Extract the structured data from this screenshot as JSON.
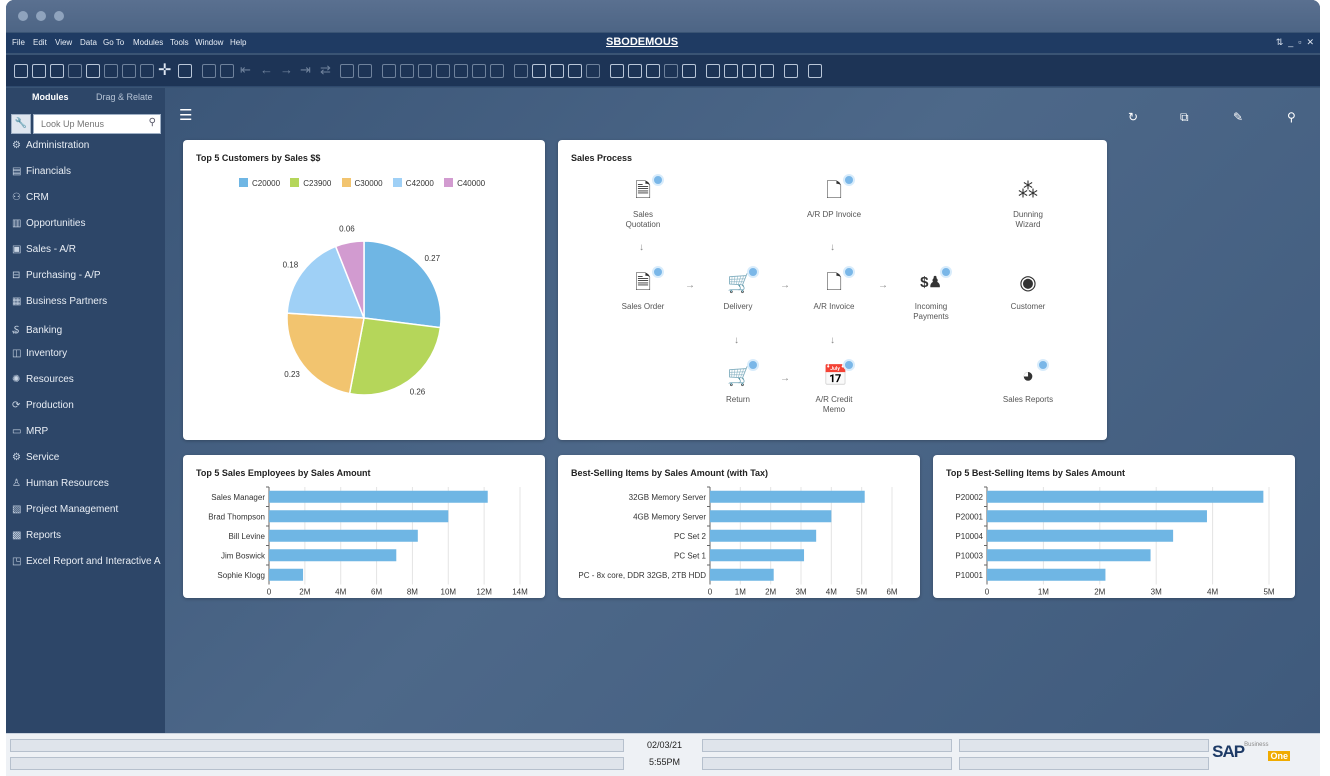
{
  "window": {
    "title": "SBODEMOUS"
  },
  "menu": [
    "File",
    "Edit",
    "View",
    "Data",
    "Go To",
    "Modules",
    "Tools",
    "Window",
    "Help"
  ],
  "sidebar": {
    "tabs": [
      "Modules",
      "Drag & Relate"
    ],
    "search_placeholder": "Look Up Menus",
    "items": [
      {
        "label": "Administration",
        "icon": "gear-icon"
      },
      {
        "label": "Financials",
        "icon": "ledger-icon"
      },
      {
        "label": "CRM",
        "icon": "people-icon"
      },
      {
        "label": "Opportunities",
        "icon": "chart-icon"
      },
      {
        "label": "Sales - A/R",
        "icon": "invoice-icon"
      },
      {
        "label": "Purchasing - A/P",
        "icon": "cart-icon"
      },
      {
        "label": "Business Partners",
        "icon": "partners-icon"
      },
      {
        "label": "Banking",
        "icon": "bank-icon"
      },
      {
        "label": "Inventory",
        "icon": "box-icon"
      },
      {
        "label": "Resources",
        "icon": "resources-icon"
      },
      {
        "label": "Production",
        "icon": "production-icon"
      },
      {
        "label": "MRP",
        "icon": "mrp-icon"
      },
      {
        "label": "Service",
        "icon": "service-icon"
      },
      {
        "label": "Human Resources",
        "icon": "person-icon"
      },
      {
        "label": "Project Management",
        "icon": "project-icon"
      },
      {
        "label": "Reports",
        "icon": "report-icon"
      },
      {
        "label": "Excel Report and Interactive A",
        "icon": "excel-icon"
      }
    ]
  },
  "colors": {
    "accent": "#6fb6e4",
    "pie": [
      "#6fb6e4",
      "#b5d65a",
      "#f2c46f",
      "#9fd0f6",
      "#d29bd0"
    ]
  },
  "cards": {
    "customers": {
      "title": "Top 5 Customers by Sales $$"
    },
    "process": {
      "title": "Sales Process",
      "nodes": {
        "sales_quotation": "Sales\nQuotation",
        "ar_dp_invoice": "A/R DP Invoice",
        "dunning_wizard": "Dunning\nWizard",
        "sales_order": "Sales Order",
        "delivery": "Delivery",
        "ar_invoice": "A/R Invoice",
        "incoming_payments": "Incoming\nPayments",
        "customer": "Customer",
        "return": "Return",
        "ar_credit_memo": "A/R Credit\nMemo",
        "sales_reports": "Sales Reports"
      }
    },
    "employees": {
      "title": "Top 5 Sales Employees by Sales Amount"
    },
    "items_tax": {
      "title": "Best-Selling Items by Sales Amount (with Tax)"
    },
    "items": {
      "title": "Top 5 Best-Selling Items by Sales Amount"
    }
  },
  "chart_data": [
    {
      "type": "pie",
      "title": "Top 5 Customers by Sales $$",
      "categories": [
        "C20000",
        "C23900",
        "C30000",
        "C42000",
        "C40000"
      ],
      "values": [
        0.27,
        0.26,
        0.23,
        0.18,
        0.06
      ],
      "legend": "top"
    },
    {
      "type": "bar",
      "orientation": "horizontal",
      "title": "Top 5 Sales Employees by Sales Amount",
      "categories": [
        "Sales Manager",
        "Brad Thompson",
        "Bill Levine",
        "Jim Boswick",
        "Sophie Klogg"
      ],
      "values": [
        12.2,
        10.0,
        8.3,
        7.1,
        1.9
      ],
      "ticks": [
        "0",
        "2M",
        "4M",
        "6M",
        "8M",
        "10M",
        "12M",
        "14M"
      ],
      "xlim": [
        0,
        14
      ]
    },
    {
      "type": "bar",
      "orientation": "horizontal",
      "title": "Best-Selling Items by Sales Amount (with Tax)",
      "categories": [
        "32GB Memory Server",
        "4GB Memory Server",
        "PC Set 2",
        "PC Set 1",
        "PC - 8x core, DDR 32GB, 2TB HDD"
      ],
      "values": [
        5.1,
        4.0,
        3.5,
        3.1,
        2.1
      ],
      "ticks": [
        "0",
        "1M",
        "2M",
        "3M",
        "4M",
        "5M",
        "6M"
      ],
      "xlim": [
        0,
        6
      ]
    },
    {
      "type": "bar",
      "orientation": "horizontal",
      "title": "Top 5 Best-Selling Items by Sales Amount",
      "categories": [
        "P20002",
        "P20001",
        "P10004",
        "P10003",
        "P10001"
      ],
      "values": [
        4.9,
        3.9,
        3.3,
        2.9,
        2.1
      ],
      "ticks": [
        "0",
        "1M",
        "2M",
        "3M",
        "4M",
        "5M"
      ],
      "xlim": [
        0,
        5
      ]
    }
  ],
  "status": {
    "date": "02/03/21",
    "time": "5:55PM",
    "brand": "SAP",
    "brand_sup": "Business",
    "brand_one": "One"
  }
}
